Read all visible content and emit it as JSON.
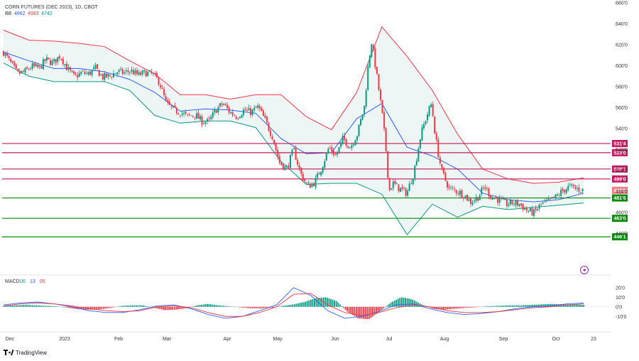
{
  "header": {
    "title": "CORN FUTURES (DEC 2023), 1D, CBOT",
    "bb_label": "BB",
    "bb_values": [
      "4862",
      "4983",
      "4742"
    ],
    "macd_label": "MACD",
    "macd_values": [
      "06",
      "13",
      "05"
    ]
  },
  "footer": {
    "brand": "TradingView"
  },
  "colors": {
    "up": "#089981",
    "down": "#F23645",
    "bb_upper": "#F23645",
    "bb_basis": "#2962FF",
    "bb_lower": "#089981",
    "bb_fill": "#e8f4f1",
    "resistance": "#c2185b",
    "support": "#0a8a0a",
    "macd_line": "#2962FF",
    "signal_line": "#F23645",
    "price_label": "#f77c80"
  },
  "chart_data": {
    "type": "candlestick",
    "title": "CORN FUTURES (DEC 2023), 1D, CBOT",
    "price_axis": {
      "ylim": [
        4300,
        6600
      ],
      "ticks": [
        "660'0",
        "640'0",
        "620'0",
        "600'0",
        "580'0",
        "560'0",
        "540'0",
        "520'0",
        "500'0",
        "480'0",
        "460'0",
        "440'0"
      ]
    },
    "time_axis": {
      "labels": [
        "Dec",
        "2023",
        "Feb",
        "Mar",
        "Apr",
        "May",
        "Jun",
        "Jul",
        "Aug",
        "Sep",
        "Oct",
        "23"
      ]
    },
    "price_path": [
      [
        0,
        6150
      ],
      [
        10,
        6050
      ],
      [
        20,
        5950
      ],
      [
        30,
        5970
      ],
      [
        40,
        6020
      ],
      [
        50,
        6000
      ],
      [
        60,
        6080
      ],
      [
        70,
        6050
      ],
      [
        80,
        6120
      ],
      [
        90,
        6000
      ],
      [
        100,
        5920
      ],
      [
        110,
        5960
      ],
      [
        120,
        5950
      ],
      [
        130,
        6000
      ],
      [
        140,
        5920
      ],
      [
        150,
        5930
      ],
      [
        160,
        5970
      ],
      [
        170,
        5960
      ],
      [
        180,
        5980
      ],
      [
        190,
        5940
      ],
      [
        200,
        5960
      ],
      [
        210,
        5950
      ],
      [
        220,
        5880
      ],
      [
        230,
        5680
      ],
      [
        240,
        5620
      ],
      [
        250,
        5600
      ],
      [
        260,
        5560
      ],
      [
        270,
        5580
      ],
      [
        280,
        5520
      ],
      [
        290,
        5510
      ],
      [
        300,
        5620
      ],
      [
        310,
        5680
      ],
      [
        320,
        5600
      ],
      [
        330,
        5560
      ],
      [
        340,
        5620
      ],
      [
        350,
        5600
      ],
      [
        360,
        5650
      ],
      [
        370,
        5520
      ],
      [
        380,
        5380
      ],
      [
        390,
        5140
      ],
      [
        400,
        5080
      ],
      [
        410,
        5260
      ],
      [
        420,
        5040
      ],
      [
        430,
        4920
      ],
      [
        440,
        4960
      ],
      [
        450,
        5100
      ],
      [
        460,
        5280
      ],
      [
        470,
        5200
      ],
      [
        480,
        5360
      ],
      [
        490,
        5280
      ],
      [
        500,
        5400
      ],
      [
        510,
        5650
      ],
      [
        515,
        6000
      ],
      [
        520,
        6250
      ],
      [
        525,
        6050
      ],
      [
        535,
        5600
      ],
      [
        540,
        5300
      ],
      [
        545,
        4880
      ],
      [
        550,
        4950
      ],
      [
        560,
        4900
      ],
      [
        570,
        4860
      ],
      [
        580,
        5050
      ],
      [
        590,
        5400
      ],
      [
        600,
        5600
      ],
      [
        605,
        5680
      ],
      [
        610,
        5400
      ],
      [
        615,
        5200
      ],
      [
        620,
        5050
      ],
      [
        630,
        4900
      ],
      [
        640,
        4880
      ],
      [
        650,
        4850
      ],
      [
        660,
        4780
      ],
      [
        670,
        4820
      ],
      [
        680,
        4920
      ],
      [
        690,
        4820
      ],
      [
        700,
        4800
      ],
      [
        710,
        4760
      ],
      [
        720,
        4770
      ],
      [
        730,
        4760
      ],
      [
        740,
        4700
      ],
      [
        750,
        4680
      ],
      [
        760,
        4760
      ],
      [
        770,
        4780
      ],
      [
        780,
        4820
      ],
      [
        790,
        4880
      ],
      [
        800,
        4920
      ],
      [
        810,
        4900
      ],
      [
        820,
        4886
      ]
    ],
    "bollinger": {
      "upper": [
        6350,
        6260,
        6250,
        6230,
        6200,
        6070,
        5950,
        5760,
        5760,
        5720,
        5760,
        5760,
        5560,
        5440,
        5780,
        6380,
        6110,
        5800,
        5400,
        5080,
        4990,
        4950,
        4960,
        5000
      ],
      "basis": [
        6150,
        6070,
        6000,
        6000,
        5970,
        5900,
        5780,
        5610,
        5630,
        5620,
        5590,
        5360,
        5220,
        5230,
        5540,
        5680,
        5280,
        5200,
        5080,
        4860,
        4800,
        4780,
        4800,
        4860
      ],
      "lower": [
        6050,
        5930,
        5880,
        5880,
        5880,
        5800,
        5570,
        5500,
        5520,
        5520,
        5460,
        5150,
        4940,
        4950,
        4950,
        4850,
        4480,
        4760,
        4640,
        4740,
        4710,
        4730,
        4750,
        4770
      ]
    },
    "levels": [
      {
        "label": "531'4",
        "value": 5314,
        "type": "resistance"
      },
      {
        "label": "523'0",
        "value": 5230,
        "type": "resistance"
      },
      {
        "label": "508'1",
        "value": 5081,
        "type": "resistance"
      },
      {
        "label": "499'0",
        "value": 4990,
        "type": "resistance"
      },
      {
        "label": "481'6",
        "value": 4816,
        "type": "support"
      },
      {
        "label": "463'0",
        "value": 4630,
        "type": "support"
      },
      {
        "label": "446'1",
        "value": 4461,
        "type": "support"
      }
    ],
    "current_price": {
      "label": "488'6",
      "value": 4886
    },
    "macd": {
      "ylim": [
        -15,
        25
      ],
      "ticks": [
        "20'0",
        "10'0",
        "0'0",
        "-10'0"
      ],
      "histogram": [
        1,
        1.5,
        2,
        1.5,
        1,
        0.5,
        -1,
        -2.5,
        -3,
        -2.5,
        -1,
        1,
        1.5,
        1.5,
        -1,
        -3.5,
        -3,
        -1.5,
        1.5,
        3,
        1.5,
        0.5,
        -0.5,
        -1.5,
        -1.5,
        -1,
        1,
        2.5,
        5,
        9,
        10,
        6,
        -5,
        -12,
        -13,
        -5,
        4,
        10,
        8,
        2,
        -2,
        -3,
        -2,
        -1,
        -0.5,
        0.5,
        1,
        1.5,
        1.5,
        2,
        2.5,
        3,
        2.5,
        2.5,
        2
      ],
      "macd_line": [
        2,
        4,
        5,
        3,
        0,
        -4,
        -6,
        -6,
        -3,
        1,
        2,
        -2,
        -8,
        -12,
        -10,
        -4,
        2,
        20,
        12,
        -4,
        -12,
        -10,
        -5,
        2,
        3,
        -2,
        -6,
        -8,
        -7,
        -5,
        -2,
        0,
        1,
        3,
        4
      ],
      "signal_line": [
        1,
        3,
        4,
        3,
        1,
        -2,
        -4,
        -5,
        -4,
        0,
        1,
        -1,
        -6,
        -10,
        -10,
        -6,
        0,
        13,
        14,
        2,
        -6,
        -9,
        -6,
        -1,
        2,
        0,
        -4,
        -6,
        -6,
        -5,
        -3,
        -1,
        0,
        2,
        3
      ]
    }
  }
}
